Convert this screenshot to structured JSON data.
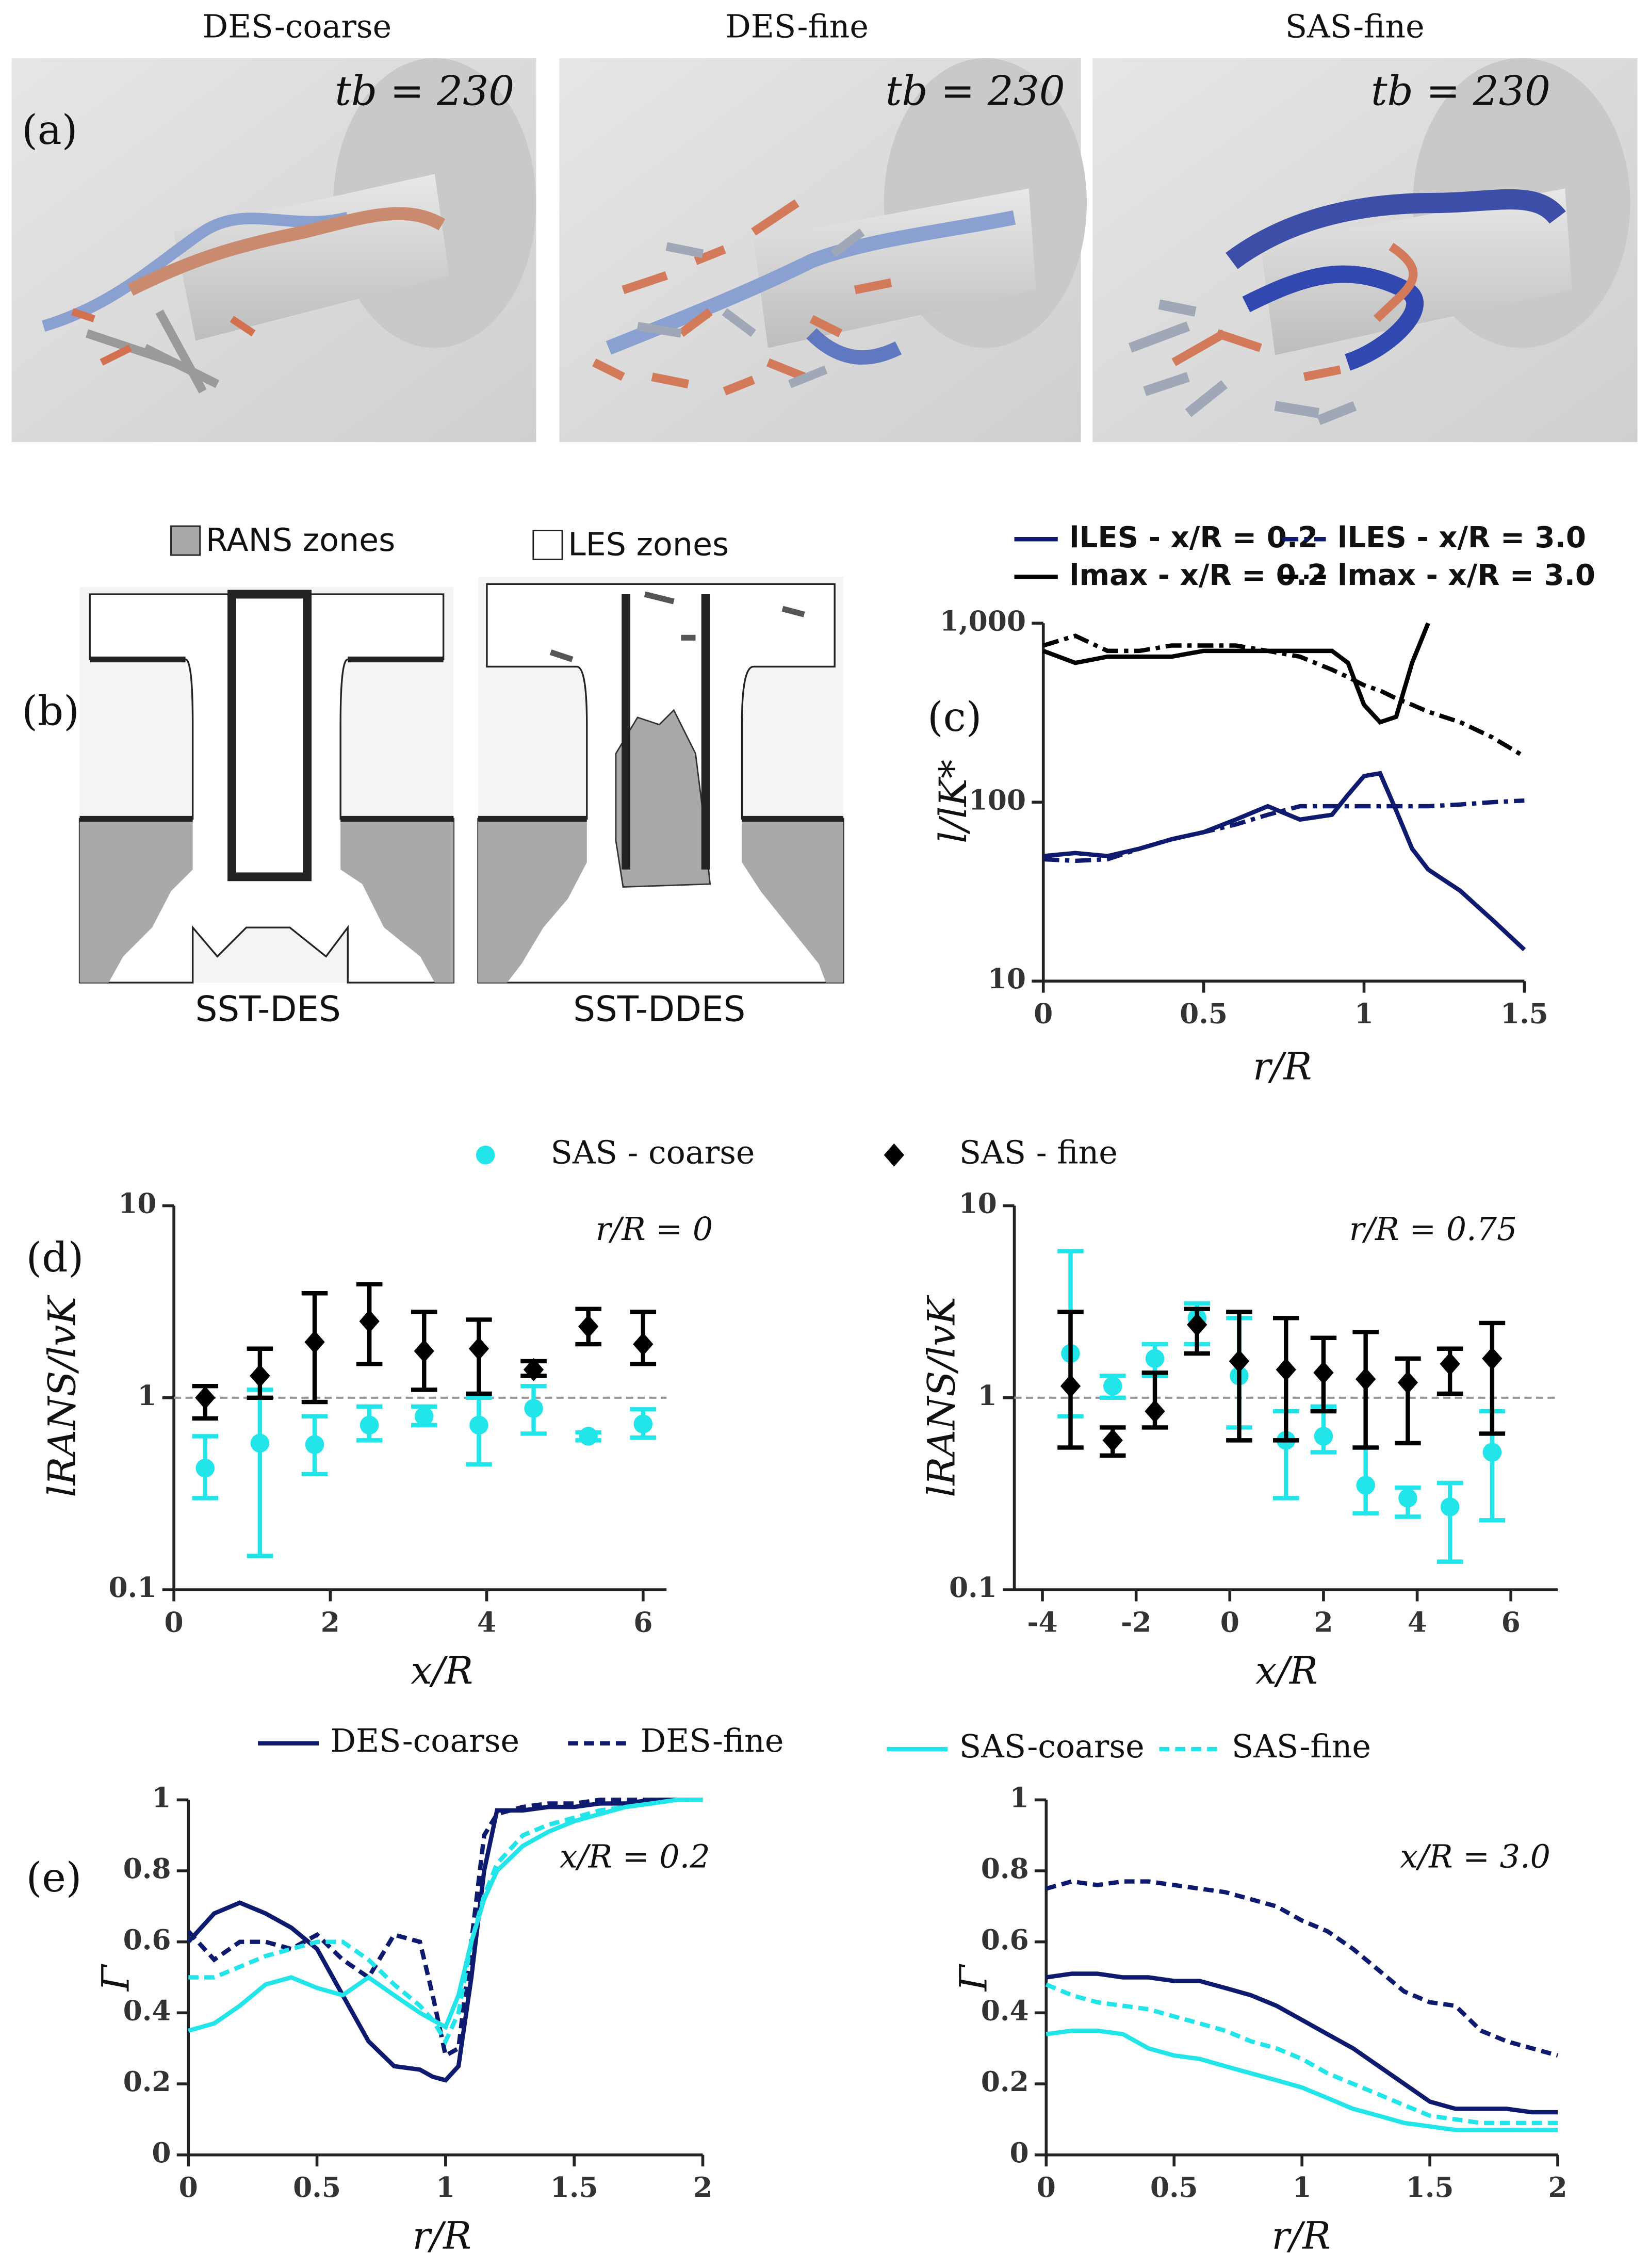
{
  "panel_a": {
    "label": "(a)",
    "images": [
      {
        "title": "DES-coarse",
        "time": "tb = 230"
      },
      {
        "title": "DES-fine",
        "time": "tb = 230"
      },
      {
        "title": "SAS-fine",
        "time": "tb = 230"
      }
    ]
  },
  "panel_b": {
    "label": "(b)",
    "legend": [
      "RANS zones",
      "LES zones"
    ],
    "captions": [
      "SST-DES",
      "SST-DDES"
    ]
  },
  "chart_data": [
    {
      "type": "line",
      "panel_label": "(c)",
      "ylabel": "l/lK*",
      "xlabel": "r/R",
      "ylog": true,
      "xlim": [
        0,
        1.5
      ],
      "xticks": [
        0,
        0.5,
        1,
        1.5
      ],
      "ylim": [
        10,
        1000
      ],
      "yticks": [
        10,
        100,
        {
          "value": 1000,
          "label": "1,000"
        }
      ],
      "x": [
        0,
        0.1,
        0.2,
        0.3,
        0.4,
        0.5,
        0.6,
        0.7,
        0.8,
        0.9,
        0.95,
        1.0,
        1.05,
        1.1,
        1.15,
        1.2,
        1.3,
        1.4,
        1.5
      ],
      "series": [
        {
          "name": "lLES - x/R = 0.2",
          "color": "#0d1a6e",
          "dash": "solid",
          "values": [
            50,
            52,
            50,
            55,
            62,
            68,
            80,
            95,
            80,
            85,
            110,
            140,
            145,
            90,
            55,
            42,
            32,
            22,
            15
          ]
        },
        {
          "name": "lLES - x/R = 3.0",
          "color": "#0d1a6e",
          "dash": "dashdot",
          "values": [
            48,
            47,
            48,
            55,
            62,
            68,
            75,
            85,
            95,
            95,
            95,
            95,
            95,
            95,
            95,
            95,
            97,
            100,
            102
          ]
        },
        {
          "name": "lmax - x/R = 0.2",
          "color": "#000000",
          "dash": "solid",
          "values": [
            700,
            600,
            650,
            650,
            650,
            700,
            700,
            700,
            700,
            700,
            600,
            350,
            280,
            300,
            600,
            1000,
            null,
            null,
            null
          ]
        },
        {
          "name": "lmax - x/R = 3.0",
          "color": "#000000",
          "dash": "dashdot",
          "values": [
            750,
            850,
            700,
            700,
            750,
            750,
            750,
            700,
            650,
            550,
            500,
            450,
            420,
            380,
            350,
            320,
            280,
            230,
            180
          ]
        }
      ]
    },
    {
      "type": "errorbar",
      "panel_label": "(d)",
      "ylabel": "lRANS/lvK",
      "xlabel": "x/R",
      "annotation": "r/R = 0",
      "ylog": true,
      "refline": 1,
      "xlim": [
        0,
        6.3
      ],
      "xticks": [
        0,
        2,
        4,
        6
      ],
      "ylim": [
        0.1,
        10
      ],
      "yticks": [
        0.1,
        1,
        10
      ],
      "x": [
        0.4,
        1.1,
        1.8,
        2.5,
        3.2,
        3.9,
        4.6,
        5.3,
        6.0
      ],
      "series": [
        {
          "name": "SAS - coarse",
          "color": "#22e5ea",
          "marker": "circle",
          "values": [
            0.43,
            0.58,
            0.57,
            0.72,
            0.8,
            0.72,
            0.88,
            0.63,
            0.73
          ],
          "low": [
            0.3,
            0.15,
            0.4,
            0.6,
            0.72,
            0.45,
            0.65,
            0.6,
            0.62
          ],
          "high": [
            0.63,
            1.1,
            0.8,
            0.9,
            0.9,
            1.0,
            1.15,
            0.66,
            0.87
          ]
        },
        {
          "name": "SAS - fine",
          "color": "#000000",
          "marker": "diamond",
          "values": [
            1.0,
            1.3,
            1.95,
            2.5,
            1.75,
            1.8,
            1.4,
            2.35,
            1.9
          ],
          "low": [
            0.78,
            1.0,
            0.95,
            1.5,
            1.1,
            1.05,
            1.3,
            1.9,
            1.5
          ],
          "high": [
            1.15,
            1.8,
            3.5,
            3.9,
            2.8,
            2.55,
            1.55,
            2.9,
            2.8
          ]
        }
      ]
    },
    {
      "type": "errorbar",
      "ylabel": "lRANS/lvK",
      "xlabel": "x/R",
      "annotation": "r/R = 0.75",
      "ylog": true,
      "refline": 1,
      "xlim": [
        -4.6,
        7.0
      ],
      "xticks": [
        -4,
        -2,
        0,
        2,
        4,
        6
      ],
      "ylim": [
        0.1,
        10
      ],
      "yticks": [
        0.1,
        1,
        10
      ],
      "x": [
        -3.4,
        -2.5,
        -1.6,
        -0.7,
        0.2,
        1.2,
        2.0,
        2.9,
        3.8,
        4.7,
        5.6
      ],
      "series": [
        {
          "color": "#22e5ea",
          "marker": "circle",
          "values": [
            1.7,
            1.15,
            1.6,
            2.6,
            1.3,
            0.6,
            0.63,
            0.35,
            0.3,
            0.27,
            0.52
          ],
          "low": [
            0.8,
            1.0,
            1.3,
            1.9,
            0.7,
            0.3,
            0.52,
            0.25,
            0.24,
            0.14,
            0.23
          ],
          "high": [
            5.8,
            1.3,
            1.9,
            3.1,
            2.6,
            0.85,
            0.9,
            0.55,
            0.34,
            0.36,
            0.85
          ]
        },
        {
          "color": "#000000",
          "marker": "diamond",
          "values": [
            1.15,
            0.6,
            0.85,
            2.4,
            1.55,
            1.4,
            1.35,
            1.25,
            1.2,
            1.5,
            1.6
          ],
          "low": [
            0.55,
            0.5,
            0.7,
            1.7,
            0.6,
            0.6,
            0.85,
            0.55,
            0.58,
            1.05,
            0.65
          ],
          "high": [
            2.8,
            0.7,
            1.35,
            2.9,
            2.8,
            2.6,
            2.05,
            2.2,
            1.6,
            1.8,
            2.45
          ]
        }
      ]
    },
    {
      "type": "line",
      "panel_label": "(e)",
      "ylabel": "Γ",
      "xlabel": "r/R",
      "annotation": "x/R = 0.2",
      "xlim": [
        0,
        2
      ],
      "xticks": [
        0,
        0.5,
        1,
        1.5,
        2
      ],
      "ylim": [
        0,
        1
      ],
      "yticks": [
        0,
        0.2,
        0.4,
        0.6,
        0.8,
        1
      ],
      "x": [
        0,
        0.1,
        0.2,
        0.3,
        0.4,
        0.5,
        0.6,
        0.7,
        0.8,
        0.9,
        0.95,
        1.0,
        1.05,
        1.1,
        1.15,
        1.2,
        1.3,
        1.4,
        1.5,
        1.6,
        1.7,
        1.8,
        1.9,
        2.0
      ],
      "series": [
        {
          "name": "DES-coarse",
          "color": "#0d1a6e",
          "dash": "solid",
          "values": [
            0.6,
            0.68,
            0.71,
            0.68,
            0.64,
            0.58,
            0.45,
            0.32,
            0.25,
            0.24,
            0.22,
            0.21,
            0.25,
            0.5,
            0.8,
            0.97,
            0.97,
            0.98,
            0.98,
            0.99,
            0.99,
            1,
            1,
            1
          ]
        },
        {
          "name": "DES-fine",
          "color": "#0d1a6e",
          "dash": "dashed",
          "values": [
            0.63,
            0.55,
            0.6,
            0.6,
            0.58,
            0.62,
            0.55,
            0.5,
            0.62,
            0.6,
            0.45,
            0.28,
            0.3,
            0.6,
            0.9,
            0.96,
            0.98,
            0.99,
            0.99,
            1,
            1,
            1,
            1,
            1
          ]
        },
        {
          "name": "SAS-coarse",
          "color": "#22e5ea",
          "dash": "solid",
          "values": [
            0.35,
            0.37,
            0.42,
            0.48,
            0.5,
            0.47,
            0.45,
            0.5,
            0.45,
            0.4,
            0.38,
            0.36,
            0.45,
            0.6,
            0.72,
            0.8,
            0.87,
            0.91,
            0.94,
            0.96,
            0.98,
            0.99,
            1,
            1
          ]
        },
        {
          "name": "SAS-fine",
          "color": "#22e5ea",
          "dash": "dashed",
          "values": [
            0.5,
            0.5,
            0.53,
            0.56,
            0.58,
            0.6,
            0.6,
            0.55,
            0.48,
            0.42,
            0.38,
            0.32,
            0.4,
            0.6,
            0.73,
            0.82,
            0.9,
            0.93,
            0.95,
            0.97,
            0.98,
            0.99,
            1,
            1
          ]
        }
      ]
    },
    {
      "type": "line",
      "ylabel": "Γ",
      "xlabel": "r/R",
      "annotation": "x/R = 3.0",
      "xlim": [
        0,
        2
      ],
      "xticks": [
        0,
        0.5,
        1,
        1.5,
        2
      ],
      "ylim": [
        0,
        1
      ],
      "yticks": [
        0,
        0.2,
        0.4,
        0.6,
        0.8,
        1
      ],
      "x": [
        0,
        0.1,
        0.2,
        0.3,
        0.4,
        0.5,
        0.6,
        0.7,
        0.8,
        0.9,
        1.0,
        1.1,
        1.2,
        1.3,
        1.4,
        1.5,
        1.6,
        1.7,
        1.8,
        1.9,
        2.0
      ],
      "series": [
        {
          "color": "#0d1a6e",
          "dash": "solid",
          "values": [
            0.5,
            0.51,
            0.51,
            0.5,
            0.5,
            0.49,
            0.49,
            0.47,
            0.45,
            0.42,
            0.38,
            0.34,
            0.3,
            0.25,
            0.2,
            0.15,
            0.13,
            0.13,
            0.13,
            0.12,
            0.12
          ]
        },
        {
          "color": "#0d1a6e",
          "dash": "dashed",
          "values": [
            0.75,
            0.77,
            0.76,
            0.77,
            0.77,
            0.76,
            0.75,
            0.74,
            0.72,
            0.7,
            0.66,
            0.63,
            0.58,
            0.52,
            0.46,
            0.43,
            0.42,
            0.35,
            0.32,
            0.3,
            0.28
          ]
        },
        {
          "color": "#22e5ea",
          "dash": "solid",
          "values": [
            0.34,
            0.35,
            0.35,
            0.34,
            0.3,
            0.28,
            0.27,
            0.25,
            0.23,
            0.21,
            0.19,
            0.16,
            0.13,
            0.11,
            0.09,
            0.08,
            0.07,
            0.07,
            0.07,
            0.07,
            0.07
          ]
        },
        {
          "color": "#22e5ea",
          "dash": "dashed",
          "values": [
            0.48,
            0.45,
            0.43,
            0.42,
            0.41,
            0.39,
            0.37,
            0.35,
            0.32,
            0.3,
            0.27,
            0.23,
            0.2,
            0.17,
            0.14,
            0.11,
            0.1,
            0.09,
            0.09,
            0.09,
            0.09
          ]
        }
      ]
    }
  ]
}
